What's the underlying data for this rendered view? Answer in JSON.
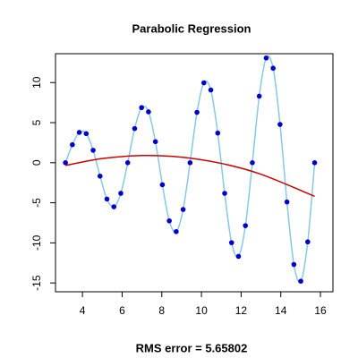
{
  "chart_data": {
    "type": "scatter",
    "title": "Parabolic Regression",
    "xlabel": "RMS error = 5.65802",
    "x": [
      3.142,
      3.491,
      3.84,
      4.189,
      4.538,
      4.887,
      5.236,
      5.585,
      5.934,
      6.283,
      6.632,
      6.981,
      7.33,
      7.679,
      8.029,
      8.378,
      8.727,
      9.076,
      9.425,
      9.774,
      10.123,
      10.472,
      10.821,
      11.17,
      11.519,
      11.868,
      12.217,
      12.566,
      12.915,
      13.265,
      13.614,
      13.963,
      14.312,
      14.661,
      15.01,
      15.359,
      15.708
    ],
    "values": [
      0,
      2.244,
      3.781,
      3.628,
      1.552,
      -1.671,
      -4.534,
      -5.5,
      -3.814,
      0,
      4.263,
      6.875,
      6.348,
      2.626,
      -2.746,
      -7.255,
      -8.594,
      -5.834,
      0,
      6.283,
      9.969,
      9.069,
      3.701,
      -3.82,
      -9.976,
      -11.688,
      -7.853,
      0,
      8.302,
      13.063,
      11.79,
      4.775,
      -4.895,
      -12.697,
      -14.782,
      -9.873,
      0
    ],
    "color": "#0000cd",
    "curve_color": "#87c8e6",
    "fit_x": [
      3.142,
      5,
      7,
      9,
      11,
      13,
      15.708
    ],
    "fit_values": [
      -0.345,
      0.519,
      0.894,
      0.692,
      -0.086,
      -1.439,
      -4.191
    ],
    "fit_color": "#cc0000",
    "xlim": [
      2.64,
      16.63
    ],
    "ylim": [
      -16.1,
      13.6
    ],
    "xticks": [
      4,
      6,
      8,
      10,
      12,
      14,
      16
    ],
    "yticks": [
      -15,
      -10,
      -5,
      0,
      5,
      10
    ]
  }
}
